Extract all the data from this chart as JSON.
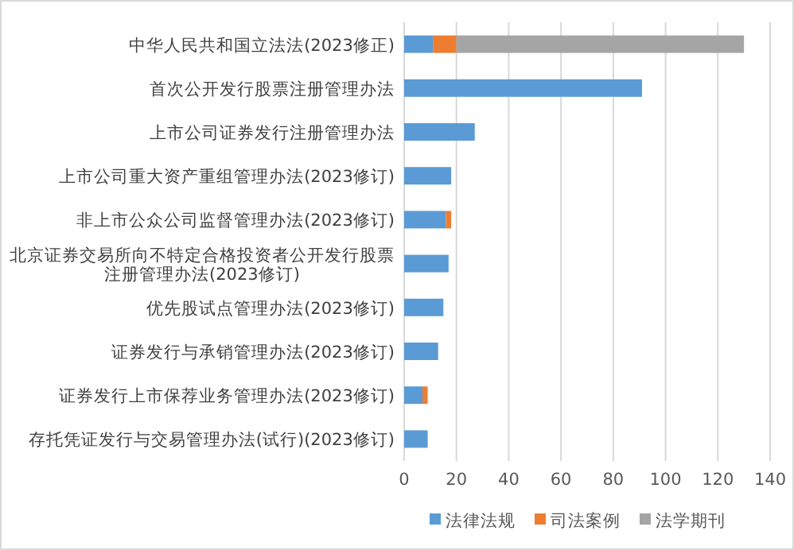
{
  "chart_data": {
    "type": "bar",
    "orientation": "horizontal",
    "stacked": true,
    "categories": [
      "中华人民共和国立法法(2023修正)",
      "首次公开发行股票注册管理办法",
      "上市公司证券发行注册管理办法",
      "上市公司重大资产重组管理办法(2023修订)",
      "非上市公众公司监督管理办法(2023修订)",
      "北京证券交易所向不特定合格投资者公开发行股票注册管理办法(2023修订)",
      "优先股试点管理办法(2023修订)",
      "证券发行与承销管理办法(2023修订)",
      "证券发行上市保荐业务管理办法(2023修订)",
      "存托凭证发行与交易管理办法(试行)(2023修订)"
    ],
    "series": [
      {
        "name": "法律法规",
        "color": "#5b9bd5",
        "values": [
          11,
          91,
          27,
          18,
          16,
          17,
          15,
          13,
          7,
          9
        ]
      },
      {
        "name": "司法案例",
        "color": "#ed7d31",
        "values": [
          9,
          0,
          0,
          0,
          2,
          0,
          0,
          0,
          2,
          0
        ]
      },
      {
        "name": "法学期刊",
        "color": "#a5a5a5",
        "values": [
          110,
          0,
          0,
          0,
          0,
          0,
          0,
          0,
          0,
          0
        ]
      }
    ],
    "xlim": [
      0,
      140
    ],
    "xticks": [
      0,
      20,
      40,
      60,
      80,
      100,
      120,
      140
    ],
    "grid": "x",
    "legend": "bottom"
  }
}
